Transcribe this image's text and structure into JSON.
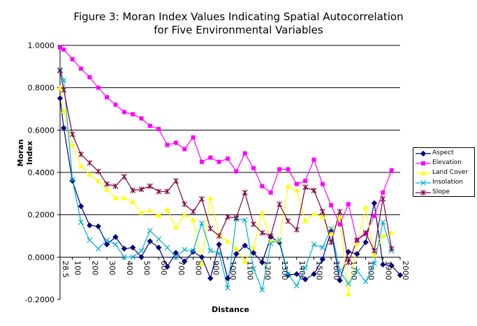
{
  "page": {
    "title_line1": "Figure 3:  Moran Index Values Indicating Spatial Autocorrelation",
    "title_line2": "for Five Environmental Variables"
  },
  "chart_data": {
    "type": "line",
    "title": "Figure 3:  Moran Index Values Indicating Spatial Autocorrelation for Five Environmental Variables",
    "xlabel": "Distance",
    "ylabel": "Moran Index",
    "ylim": [
      -0.2,
      1.0
    ],
    "yticks": [
      "-0.2000",
      "0.0000",
      "0.2000",
      "0.4000",
      "0.6000",
      "0.8000",
      "1.0000"
    ],
    "gridlines": "horizontal",
    "legend_position": "right",
    "x_tick_labels": [
      "28.5",
      "100",
      "200",
      "300",
      "400",
      "500",
      "600",
      "700",
      "800",
      "900",
      "1000",
      "1100",
      "1200",
      "1300",
      "1400",
      "1500",
      "1600",
      "1700",
      "1800",
      "1900",
      "2000"
    ],
    "x": [
      28.5,
      50,
      100,
      150,
      200,
      250,
      300,
      350,
      400,
      450,
      500,
      550,
      600,
      650,
      700,
      750,
      800,
      850,
      900,
      950,
      1000,
      1050,
      1100,
      1150,
      1200,
      1250,
      1300,
      1350,
      1400,
      1450,
      1500,
      1550,
      1600,
      1650,
      1700,
      1750,
      1800,
      1850,
      1900,
      1950,
      2000
    ],
    "series": [
      {
        "name": "Aspect",
        "color": "#000080",
        "marker": "diamond",
        "values": [
          0.75,
          0.61,
          0.36,
          0.24,
          0.15,
          0.145,
          0.06,
          0.095,
          0.04,
          0.045,
          0.0,
          0.075,
          0.045,
          -0.045,
          0.02,
          -0.02,
          0.025,
          0.0,
          -0.1,
          0.06,
          -0.1,
          0.015,
          0.055,
          0.02,
          -0.025,
          0.095,
          0.07,
          -0.085,
          -0.08,
          -0.105,
          -0.08,
          -0.01,
          0.125,
          -0.11,
          0.025,
          0.015,
          0.07,
          0.255,
          -0.035,
          -0.04,
          -0.085
        ]
      },
      {
        "name": "Elevation",
        "color": "#ff00ff",
        "marker": "square",
        "values": [
          0.99,
          0.98,
          0.935,
          0.89,
          0.85,
          0.8,
          0.755,
          0.72,
          0.685,
          0.675,
          0.655,
          0.62,
          0.605,
          0.53,
          0.54,
          0.51,
          0.565,
          0.45,
          0.47,
          0.45,
          0.465,
          0.405,
          0.49,
          0.42,
          0.335,
          0.305,
          0.415,
          0.415,
          0.345,
          0.36,
          0.46,
          0.345,
          0.245,
          0.155,
          0.25,
          0.08,
          0.11,
          0.195,
          0.305,
          0.41,
          null
        ]
      },
      {
        "name": "Land Cover",
        "color": "#ffff00",
        "marker": "triangle",
        "values": [
          0.8,
          0.69,
          0.53,
          0.43,
          0.39,
          0.36,
          0.32,
          0.28,
          0.28,
          0.26,
          0.21,
          0.22,
          0.195,
          0.225,
          0.14,
          0.2,
          0.175,
          -0.03,
          0.28,
          0.105,
          0.075,
          0.04,
          -0.02,
          0.045,
          0.21,
          0.075,
          0.08,
          0.335,
          0.315,
          0.17,
          0.205,
          0.19,
          0.11,
          0.19,
          -0.175,
          0.065,
          0.235,
          0.01,
          0.1,
          0.115,
          null
        ]
      },
      {
        "name": "Insolation",
        "color": "#00b0d0",
        "marker": "x",
        "values": [
          0.885,
          0.835,
          0.365,
          0.165,
          0.08,
          0.04,
          0.08,
          0.06,
          0.0,
          0.0,
          0.03,
          0.125,
          0.085,
          0.045,
          0.0,
          0.035,
          0.03,
          0.16,
          0.03,
          0.02,
          -0.145,
          0.18,
          0.175,
          -0.055,
          -0.155,
          0.065,
          0.08,
          -0.08,
          -0.135,
          -0.05,
          0.06,
          0.045,
          0.135,
          -0.065,
          -0.125,
          -0.065,
          -0.115,
          -0.03,
          0.165,
          0.03,
          null
        ]
      },
      {
        "name": "Slope",
        "color": "#800040",
        "marker": "asterisk",
        "values": [
          0.88,
          0.79,
          0.58,
          0.485,
          0.445,
          0.405,
          0.345,
          0.335,
          0.38,
          0.315,
          0.32,
          0.335,
          0.31,
          0.31,
          0.36,
          0.25,
          0.215,
          0.275,
          0.135,
          0.1,
          0.19,
          0.185,
          0.305,
          0.155,
          0.115,
          0.1,
          0.25,
          0.17,
          0.13,
          0.33,
          0.315,
          0.215,
          0.07,
          0.215,
          -0.025,
          0.08,
          0.115,
          0.03,
          0.275,
          0.04,
          null
        ]
      }
    ]
  }
}
